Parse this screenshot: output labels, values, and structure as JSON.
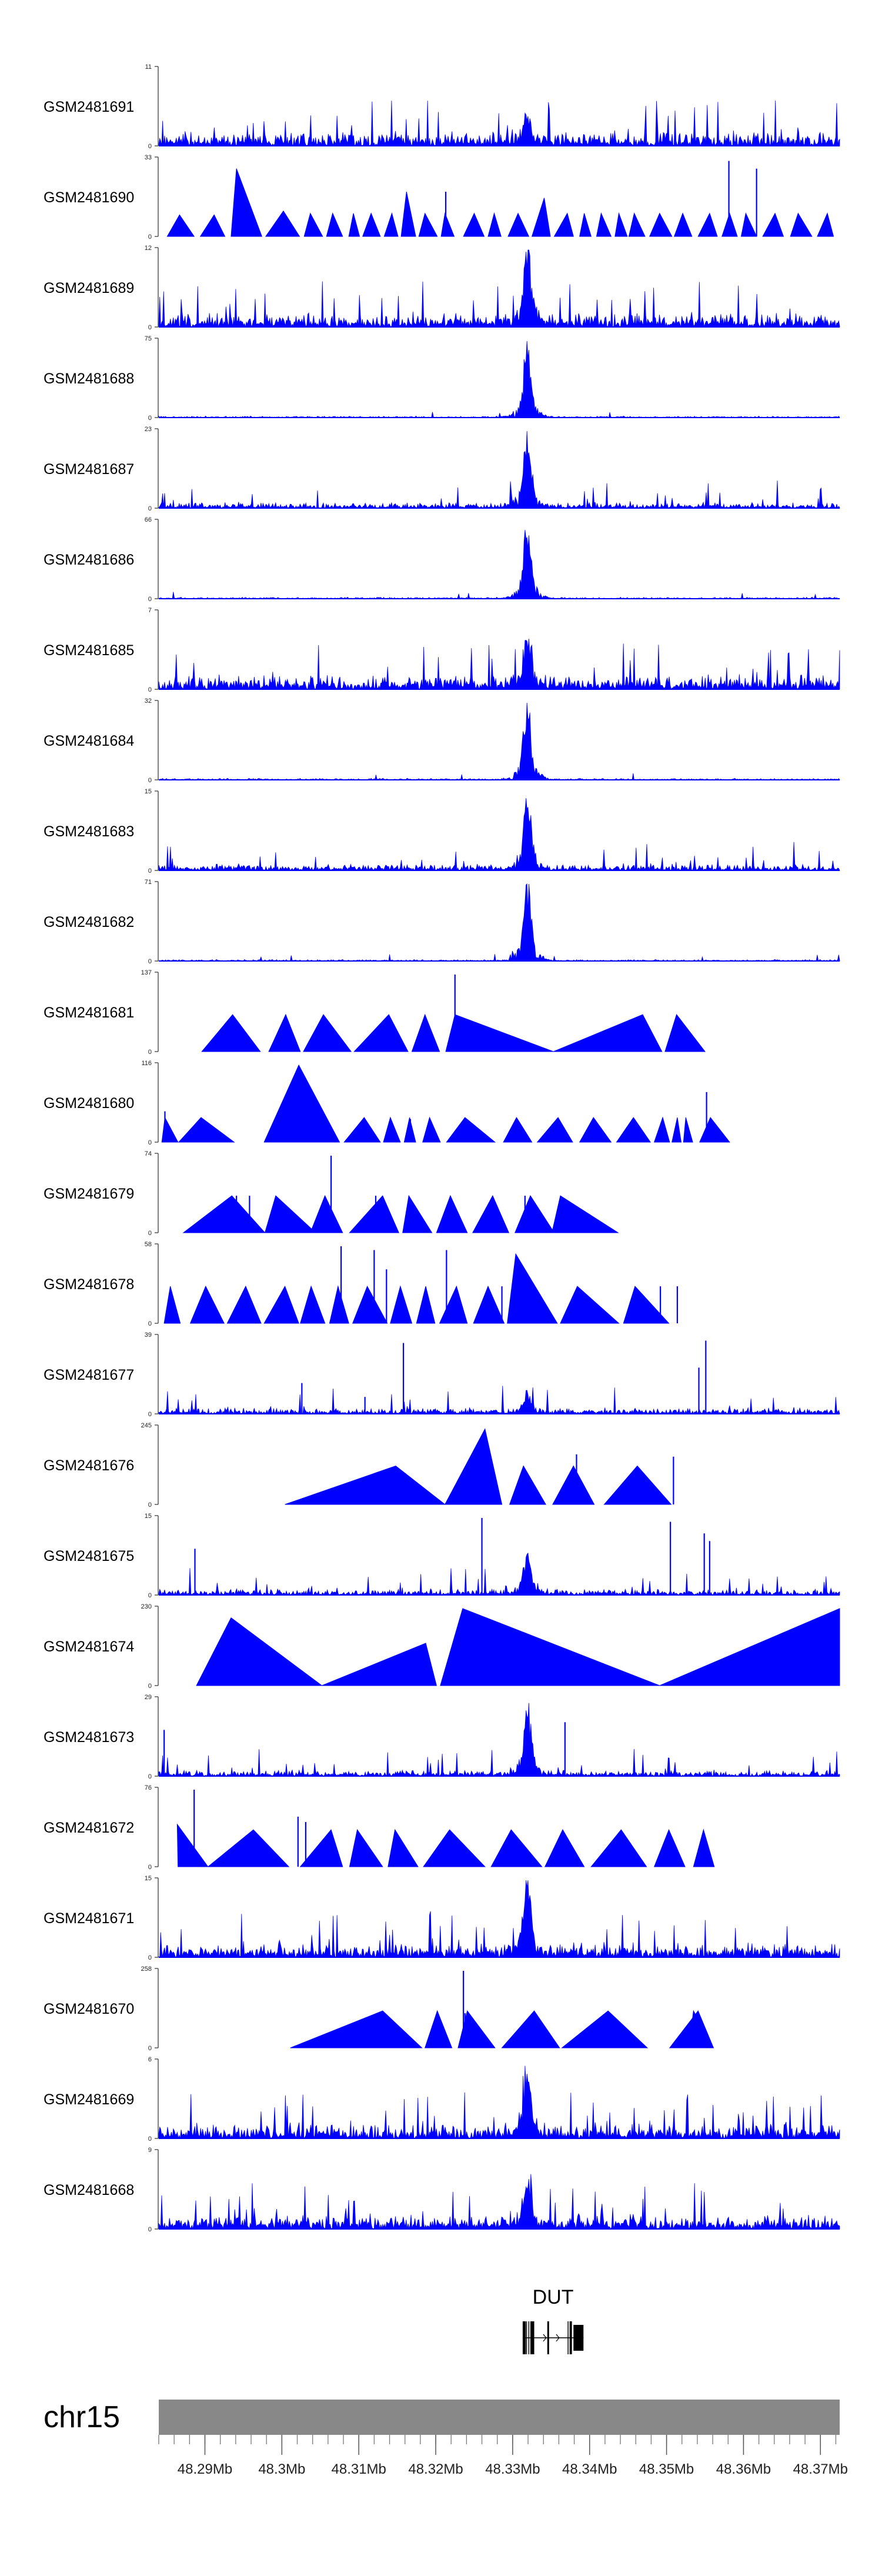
{
  "colors": {
    "signal": "#0000ff",
    "ideogram": "#888888",
    "axis": "#555555",
    "gene": "#000000"
  },
  "chart_data": {
    "type": "area",
    "x_unit": "Mb",
    "xlim": [
      48.284,
      48.3725
    ],
    "tracks": [
      {
        "name": "GSM2481691",
        "ymax": 11,
        "profile": "noisy",
        "peak_scale": 0.35,
        "seed": 101
      },
      {
        "name": "GSM2481690",
        "ymax": 33,
        "profile": "triangles",
        "seed": 102,
        "tri": [
          [
            48.2851,
            48.2867,
            48.2886,
            0.28
          ],
          [
            48.2894,
            48.2912,
            48.2926,
            0.28
          ],
          [
            48.2934,
            48.2941,
            48.2974,
            0.88
          ],
          [
            48.2979,
            48.3002,
            48.3023,
            0.33
          ],
          [
            48.3029,
            48.3037,
            48.3053,
            0.3
          ],
          [
            48.3058,
            48.3066,
            48.3079,
            0.3
          ],
          [
            48.3087,
            48.3093,
            48.3101,
            0.3
          ],
          [
            48.3105,
            48.3116,
            48.3128,
            0.3
          ],
          [
            48.3133,
            48.3143,
            48.3151,
            0.3
          ],
          [
            48.3155,
            48.3162,
            48.3174,
            0.58
          ],
          [
            48.3178,
            48.3186,
            48.3202,
            0.3
          ],
          [
            48.3207,
            48.3212,
            48.3224,
            0.3
          ],
          [
            48.3236,
            48.325,
            48.3263,
            0.3
          ],
          [
            48.3268,
            48.3276,
            48.3285,
            0.3
          ],
          [
            48.3294,
            48.3307,
            48.3321,
            0.3
          ],
          [
            48.3325,
            48.3341,
            48.3349,
            0.5
          ],
          [
            48.3354,
            48.3371,
            48.3379,
            0.3
          ],
          [
            48.3387,
            48.3393,
            48.3402,
            0.3
          ],
          [
            48.3409,
            48.3415,
            48.3428,
            0.3
          ],
          [
            48.3433,
            48.3438,
            48.3449,
            0.3
          ],
          [
            48.3451,
            48.3458,
            48.3472,
            0.3
          ],
          [
            48.3478,
            48.3491,
            48.3507,
            0.3
          ],
          [
            48.351,
            48.3521,
            48.3533,
            0.3
          ],
          [
            48.3541,
            48.3556,
            48.3566,
            0.3
          ],
          [
            48.3572,
            48.3582,
            48.3592,
            0.3
          ],
          [
            48.3597,
            48.3603,
            48.3617,
            0.3
          ],
          [
            48.3625,
            48.3641,
            48.3652,
            0.3
          ],
          [
            48.3661,
            48.3671,
            48.3689,
            0.3
          ],
          [
            48.3696,
            48.3709,
            48.3717,
            0.3
          ]
        ],
        "spikes": [
          [
            48.3213,
            0.58
          ],
          [
            48.3581,
            0.98
          ],
          [
            48.3617,
            0.88
          ]
        ]
      },
      {
        "name": "GSM2481689",
        "ymax": 12,
        "profile": "noisy",
        "peak_scale": 0.95,
        "seed": 103
      },
      {
        "name": "GSM2481688",
        "ymax": 75,
        "profile": "quiet",
        "peak_scale": 0.92,
        "seed": 104
      },
      {
        "name": "GSM2481687",
        "ymax": 23,
        "profile": "sparse",
        "peak_scale": 0.95,
        "seed": 105
      },
      {
        "name": "GSM2481686",
        "ymax": 66,
        "profile": "quiet",
        "peak_scale": 0.92,
        "seed": 106
      },
      {
        "name": "GSM2481685",
        "ymax": 7,
        "profile": "noisy",
        "peak_scale": 0.7,
        "seed": 107
      },
      {
        "name": "GSM2481684",
        "ymax": 32,
        "profile": "quiet",
        "peak_scale": 0.95,
        "seed": 108
      },
      {
        "name": "GSM2481683",
        "ymax": 15,
        "profile": "sparse",
        "peak_scale": 0.95,
        "seed": 109
      },
      {
        "name": "GSM2481682",
        "ymax": 71,
        "profile": "quiet",
        "peak_scale": 0.95,
        "seed": 110
      },
      {
        "name": "GSM2481681",
        "ymax": 137,
        "profile": "triangles",
        "seed": 111,
        "tri": [
          [
            48.2896,
            48.2936,
            48.2972,
            0.48
          ],
          [
            48.2983,
            48.3005,
            48.3024,
            0.48
          ],
          [
            48.3028,
            48.3054,
            48.309,
            0.48
          ],
          [
            48.3094,
            48.3139,
            48.3164,
            0.48
          ],
          [
            48.3169,
            48.3186,
            48.3205,
            0.48
          ],
          [
            48.3213,
            48.3225,
            48.3353,
            0.48
          ],
          [
            48.3353,
            48.3469,
            48.3494,
            0.48
          ],
          [
            48.3498,
            48.3513,
            48.355,
            0.48
          ]
        ],
        "spikes": [
          [
            48.3225,
            1.0
          ]
        ]
      },
      {
        "name": "GSM2481680",
        "ymax": 116,
        "profile": "triangles",
        "seed": 112,
        "tri": [
          [
            48.2844,
            48.2848,
            48.2865,
            0.32
          ],
          [
            48.2866,
            48.2895,
            48.2938,
            0.32
          ],
          [
            48.2977,
            48.3022,
            48.3075,
            1.0
          ],
          [
            48.3081,
            48.3107,
            48.3128,
            0.32
          ],
          [
            48.3132,
            48.3141,
            48.3154,
            0.32
          ],
          [
            48.3159,
            48.3166,
            48.3174,
            0.32
          ],
          [
            48.3183,
            48.3192,
            48.3206,
            0.32
          ],
          [
            48.3214,
            48.3238,
            48.3277,
            0.32
          ],
          [
            48.3288,
            48.3305,
            48.3325,
            0.32
          ],
          [
            48.3332,
            48.3359,
            48.3378,
            0.32
          ],
          [
            48.3387,
            48.3405,
            48.3428,
            0.32
          ],
          [
            48.3435,
            48.3457,
            48.3479,
            0.32
          ],
          [
            48.3484,
            48.3495,
            48.3504,
            0.32
          ],
          [
            48.3507,
            48.3514,
            48.3519,
            0.32
          ],
          [
            48.3522,
            48.3525,
            48.3534,
            0.32
          ],
          [
            48.3543,
            48.3557,
            48.3582,
            0.32
          ]
        ],
        "spikes": [
          [
            48.2848,
            0.4
          ],
          [
            48.3167,
            0.3
          ],
          [
            48.3552,
            0.65
          ]
        ]
      },
      {
        "name": "GSM2481679",
        "ymax": 74,
        "profile": "triangles",
        "seed": 113,
        "tri": [
          [
            48.2872,
            48.2935,
            48.2978,
            0.48
          ],
          [
            48.2978,
            48.2992,
            48.3044,
            0.48
          ],
          [
            48.3037,
            48.3056,
            48.3079,
            0.48
          ],
          [
            48.3088,
            48.3131,
            48.3152,
            0.48
          ],
          [
            48.3157,
            48.3165,
            48.3195,
            0.48
          ],
          [
            48.3201,
            48.3219,
            48.3241,
            0.48
          ],
          [
            48.3248,
            48.3274,
            48.3295,
            0.48
          ],
          [
            48.3303,
            48.3323,
            48.3354,
            0.48
          ],
          [
            48.3351,
            48.3362,
            48.3437,
            0.48
          ]
        ],
        "spikes": [
          [
            48.2941,
            0.48
          ],
          [
            48.2958,
            0.48
          ],
          [
            48.3064,
            1.0
          ],
          [
            48.3122,
            0.48
          ],
          [
            48.3316,
            0.48
          ]
        ]
      },
      {
        "name": "GSM2481678",
        "ymax": 58,
        "profile": "triangles",
        "seed": 114,
        "tri": [
          [
            48.2847,
            48.2855,
            48.2868,
            0.48
          ],
          [
            48.2881,
            48.2901,
            48.2925,
            0.48
          ],
          [
            48.2929,
            48.2953,
            48.2973,
            0.48
          ],
          [
            48.2977,
            48.3004,
            48.3022,
            0.48
          ],
          [
            48.3024,
            48.3038,
            48.3056,
            0.48
          ],
          [
            48.3062,
            48.3073,
            48.3087,
            0.48
          ],
          [
            48.3092,
            48.3111,
            48.3137,
            0.48
          ],
          [
            48.3141,
            48.3154,
            48.3169,
            0.48
          ],
          [
            48.3175,
            48.3187,
            48.3199,
            0.48
          ],
          [
            48.3205,
            48.3227,
            48.3241,
            0.48
          ],
          [
            48.3249,
            48.3268,
            48.3289,
            0.48
          ],
          [
            48.3293,
            48.3304,
            48.3358,
            0.9
          ],
          [
            48.3362,
            48.3384,
            48.3438,
            0.48
          ],
          [
            48.3444,
            48.3459,
            48.3503,
            0.48
          ]
        ],
        "spikes": [
          [
            48.3077,
            1.0
          ],
          [
            48.312,
            0.95
          ],
          [
            48.3136,
            0.7
          ],
          [
            48.3214,
            0.95
          ],
          [
            48.3286,
            0.48
          ],
          [
            48.3492,
            0.48
          ],
          [
            48.3514,
            0.48
          ]
        ]
      },
      {
        "name": "GSM2481677",
        "ymax": 39,
        "profile": "sparse",
        "peak_scale": 0.28,
        "seed": 115,
        "spikes": [
          [
            48.3026,
            0.4
          ],
          [
            48.3108,
            0.22
          ],
          [
            48.3158,
            0.92
          ],
          [
            48.3542,
            0.6
          ],
          [
            48.3551,
            0.95
          ]
        ]
      },
      {
        "name": "GSM2481676",
        "ymax": 245,
        "profile": "triangles",
        "seed": 116,
        "tri": [
          [
            48.3004,
            48.3148,
            48.3212,
            0.5
          ],
          [
            48.3212,
            48.3264,
            48.3286,
            0.98
          ],
          [
            48.3296,
            48.3314,
            48.3343,
            0.5
          ],
          [
            48.3352,
            48.3379,
            48.3406,
            0.5
          ],
          [
            48.3419,
            48.3462,
            48.3506,
            0.5
          ]
        ],
        "spikes": [
          [
            48.3272,
            0.45
          ],
          [
            48.3383,
            0.65
          ],
          [
            48.3509,
            0.62
          ]
        ]
      },
      {
        "name": "GSM2481675",
        "ymax": 15,
        "profile": "sparse",
        "peak_scale": 0.5,
        "seed": 117,
        "spikes": [
          [
            48.2887,
            0.6
          ],
          [
            48.326,
            1.0
          ],
          [
            48.3505,
            0.95
          ],
          [
            48.3549,
            0.8
          ],
          [
            48.3556,
            0.7
          ]
        ]
      },
      {
        "name": "GSM2481674",
        "ymax": 230,
        "profile": "triangles",
        "seed": 118,
        "tri": [
          [
            48.2889,
            48.2934,
            48.3052,
            0.88
          ],
          [
            48.3052,
            48.3187,
            48.3201,
            0.55
          ],
          [
            48.3206,
            48.3235,
            48.3491,
            1.0
          ],
          [
            48.3491,
            48.3725,
            48.3725,
            1.0
          ]
        ],
        "spikes": []
      },
      {
        "name": "GSM2481673",
        "ymax": 29,
        "profile": "sparse",
        "peak_scale": 0.92,
        "seed": 119,
        "spikes": [
          [
            48.2847,
            0.6
          ],
          [
            48.3368,
            0.7
          ]
        ]
      },
      {
        "name": "GSM2481672",
        "ymax": 76,
        "profile": "triangles",
        "seed": 120,
        "tri": [
          [
            48.2865,
            48.2864,
            48.2904,
            0.55
          ],
          [
            48.2904,
            48.2963,
            48.3009,
            0.48
          ],
          [
            48.3024,
            48.3064,
            48.3079,
            0.48
          ],
          [
            48.3088,
            48.3098,
            48.3131,
            0.48
          ],
          [
            48.3138,
            48.3147,
            48.3177,
            0.48
          ],
          [
            48.3184,
            48.3218,
            48.3264,
            0.48
          ],
          [
            48.3272,
            48.3298,
            48.3338,
            0.48
          ],
          [
            48.3342,
            48.3365,
            48.3393,
            0.48
          ],
          [
            48.3402,
            48.3441,
            48.3474,
            0.48
          ],
          [
            48.3484,
            48.3503,
            48.3524,
            0.48
          ],
          [
            48.3535,
            48.3548,
            48.3562,
            0.48
          ]
        ],
        "spikes": [
          [
            48.2886,
            1.0
          ],
          [
            48.3021,
            0.65
          ],
          [
            48.3031,
            0.58
          ]
        ]
      },
      {
        "name": "GSM2481671",
        "ymax": 15,
        "profile": "noisy",
        "peak_scale": 1.0,
        "seed": 121
      },
      {
        "name": "GSM2481670",
        "ymax": 258,
        "profile": "triangles",
        "seed": 122,
        "tri": [
          [
            48.3011,
            48.3131,
            48.3182,
            0.48
          ],
          [
            48.3186,
            48.3202,
            48.3221,
            0.48
          ],
          [
            48.3229,
            48.3241,
            48.3277,
            0.48
          ],
          [
            48.3286,
            48.3328,
            48.3361,
            0.48
          ],
          [
            48.3364,
            48.3424,
            48.3475,
            0.48
          ],
          [
            48.3504,
            48.3541,
            48.3561,
            0.48
          ],
          [
            48.3529,
            48.3535,
            48.3561,
            0.48
          ]
        ],
        "spikes": [
          [
            48.3236,
            1.0
          ],
          [
            48.3238,
            0.45
          ]
        ]
      },
      {
        "name": "GSM2481669",
        "ymax": 6,
        "profile": "noisy",
        "peak_scale": 0.85,
        "seed": 123
      },
      {
        "name": "GSM2481668",
        "ymax": 9,
        "profile": "noisy",
        "peak_scale": 0.6,
        "seed": 124
      }
    ],
    "peak_center": 48.3319,
    "x_ticks": [
      48.29,
      48.3,
      48.31,
      48.32,
      48.33,
      48.34,
      48.35,
      48.36,
      48.37
    ],
    "x_tick_labels": [
      "48.29Mb",
      "48.3Mb",
      "48.31Mb",
      "48.32Mb",
      "48.33Mb",
      "48.34Mb",
      "48.35Mb",
      "48.36Mb",
      "48.37Mb"
    ],
    "minor_tick_step": 0.002,
    "chromosome": "chr15",
    "gene": {
      "name": "DUT",
      "span": [
        48.3313,
        48.3392
      ],
      "exons": [
        [
          48.3313,
          48.3317
        ],
        [
          48.3323,
          48.3328
        ],
        [
          48.3345,
          48.3347
        ],
        [
          48.3374,
          48.3377
        ],
        [
          48.3379,
          48.3392
        ]
      ],
      "strand": "+"
    }
  }
}
